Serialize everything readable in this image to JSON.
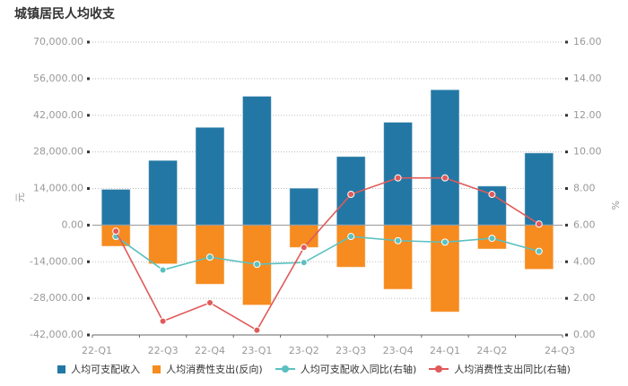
{
  "title": "城镇居民人均收支",
  "chart_data": {
    "type": "bar+line",
    "title": "城镇居民人均收支",
    "categories": [
      "22-Q1",
      "22-Q3",
      "22-Q4",
      "23-Q1",
      "23-Q2",
      "23-Q3",
      "23-Q4",
      "24-Q1",
      "24-Q2",
      "24-Q3"
    ],
    "ylabel": "元",
    "y2label": "%",
    "ylim": [
      -42000,
      70000
    ],
    "y2lim": [
      0,
      16
    ],
    "yticks": [
      "70,000.00",
      "56,000.00",
      "42,000.00",
      "28,000.00",
      "14,000.00",
      "0.00",
      "-14,000.00",
      "-28,000.00",
      "-42,000.00"
    ],
    "y2ticks": [
      "16.00",
      "14.00",
      "12.00",
      "10.00",
      "8.00",
      "6.00",
      "4.00",
      "2.00",
      "0.00"
    ],
    "grid": true,
    "legend_position": "bottom",
    "series": [
      {
        "name": "人均可支配收入",
        "type": "bar",
        "axis": "left",
        "color": "#2377a4",
        "values": [
          13700,
          24750,
          37400,
          49300,
          14140,
          26250,
          39360,
          51790,
          14960,
          27620
        ]
      },
      {
        "name": "人均消费性支出(反向)",
        "type": "bar",
        "axis": "left",
        "color": "#f68b1f",
        "values": [
          -8100,
          -14830,
          -22600,
          -30570,
          -8560,
          -16090,
          -24540,
          -33200,
          -9140,
          -16880
        ]
      },
      {
        "name": "人均可支配收入同比(右轴)",
        "type": "line",
        "axis": "right",
        "color": "#5bc0c0",
        "values": [
          5.38,
          3.55,
          4.25,
          3.86,
          3.96,
          5.38,
          5.15,
          5.07,
          5.28,
          4.57
        ]
      },
      {
        "name": "人均消费性支出同比(右轴)",
        "type": "line",
        "axis": "right",
        "color": "#e05a5a",
        "values": [
          5.67,
          0.75,
          1.76,
          0.26,
          4.78,
          7.68,
          8.58,
          8.58,
          7.68,
          6.06
        ]
      }
    ]
  }
}
